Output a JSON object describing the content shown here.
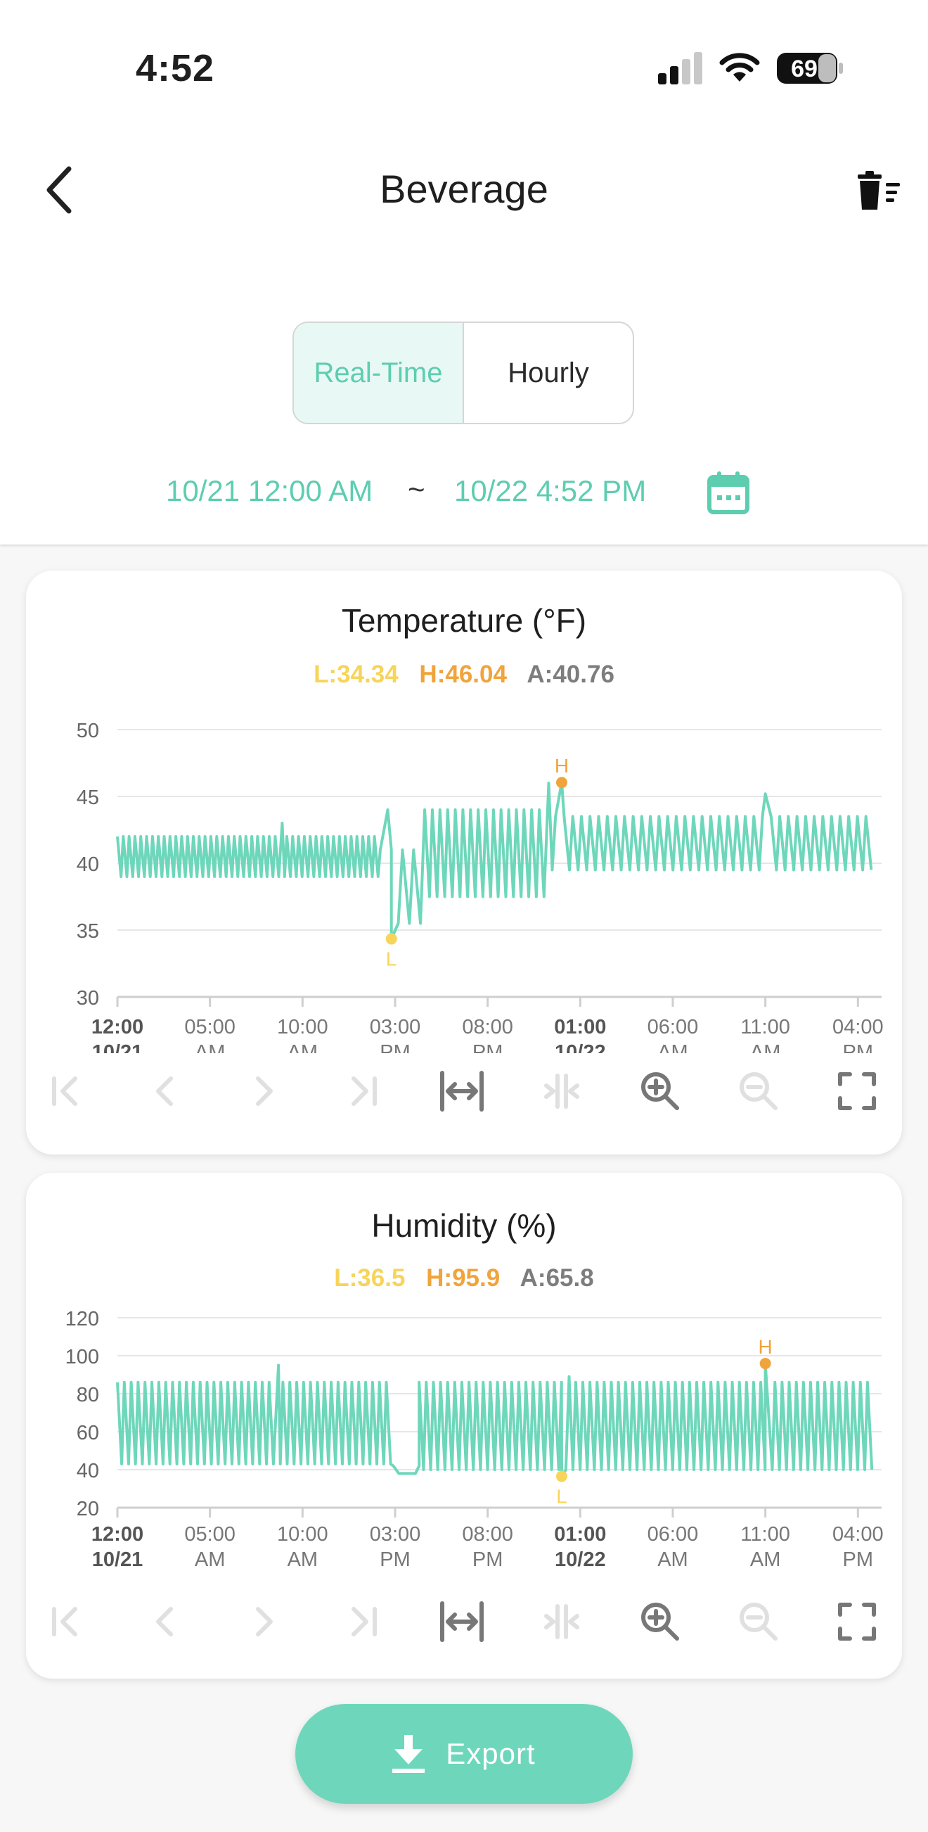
{
  "status_bar": {
    "time": "4:52",
    "battery": "69"
  },
  "header": {
    "title": "Beverage"
  },
  "mode_tabs": [
    {
      "label": "Real-Time",
      "active": true
    },
    {
      "label": "Hourly",
      "active": false
    }
  ],
  "date_range": {
    "start": "10/21 12:00 AM",
    "separator": "~",
    "end": "10/22 4:52 PM"
  },
  "colors": {
    "accent": "#5dcdb0",
    "line": "#6ed7bb",
    "low": "#f7d45a",
    "high": "#f0a43c",
    "avg": "#7d7d7d"
  },
  "toolbar_icons": [
    "first-page-icon",
    "prev-icon",
    "next-icon",
    "last-page-icon",
    "fit-width-icon",
    "compress-icon",
    "zoom-in-icon",
    "zoom-out-icon",
    "fullscreen-icon"
  ],
  "x_ticks": [
    {
      "top": "12:00",
      "bottom": "10/21",
      "bold": true
    },
    {
      "top": "05:00",
      "bottom": "AM",
      "bold": false
    },
    {
      "top": "10:00",
      "bottom": "AM",
      "bold": false
    },
    {
      "top": "03:00",
      "bottom": "PM",
      "bold": false
    },
    {
      "top": "08:00",
      "bottom": "PM",
      "bold": false
    },
    {
      "top": "01:00",
      "bottom": "10/22",
      "bold": true
    },
    {
      "top": "06:00",
      "bottom": "AM",
      "bold": false
    },
    {
      "top": "11:00",
      "bottom": "AM",
      "bold": false
    },
    {
      "top": "04:00",
      "bottom": "PM",
      "bold": false
    }
  ],
  "chart_data": [
    {
      "type": "line",
      "title": "Temperature (°F)",
      "stats": {
        "low": "L:34.34",
        "high": "H:46.04",
        "avg": "A:40.76"
      },
      "low_marker": "L",
      "high_marker": "H",
      "ylim": [
        30,
        50
      ],
      "yticks": [
        "30",
        "35",
        "40",
        "45",
        "50"
      ],
      "x_hours": [
        0,
        40.9
      ],
      "low_point": {
        "x": 14.8,
        "y": 34.34
      },
      "high_point": {
        "x": 24.0,
        "y": 46.04
      },
      "segments": [
        {
          "x0": 0,
          "x1": 14.2,
          "count": 45,
          "hi": 42,
          "lo": 39
        },
        {
          "x0": 14.2,
          "x1": 16.6,
          "count": 4,
          "hi": 41,
          "lo": 35.5
        },
        {
          "x0": 16.6,
          "x1": 23.2,
          "count": 16,
          "hi": 44,
          "lo": 37.5
        },
        {
          "x0": 23.2,
          "x1": 40.9,
          "count": 38,
          "hi": 43.5,
          "lo": 39.5
        }
      ],
      "spikes": [
        {
          "x": 8.9,
          "y": 43
        },
        {
          "x": 14.6,
          "y": 44
        },
        {
          "x": 23.3,
          "y": 46
        },
        {
          "x": 24.0,
          "y": 46.04
        },
        {
          "x": 35.0,
          "y": 45.2
        }
      ]
    },
    {
      "type": "line",
      "title": "Humidity (%)",
      "stats": {
        "low": "L:36.5",
        "high": "H:95.9",
        "avg": "A:65.8"
      },
      "low_marker": "L",
      "high_marker": "H",
      "ylim": [
        20,
        120
      ],
      "yticks": [
        "20",
        "40",
        "60",
        "80",
        "100",
        "120"
      ],
      "x_hours": [
        0,
        40.9
      ],
      "low_point": {
        "x": 24.0,
        "y": 36.5
      },
      "high_point": {
        "x": 35.0,
        "y": 95.9
      },
      "flat_section": {
        "x0": 14.9,
        "x1": 16.3,
        "y": 38
      },
      "segments": [
        {
          "x0": 0,
          "x1": 14.9,
          "count": 40,
          "hi": 86,
          "lo": 43
        },
        {
          "x0": 16.3,
          "x1": 40.9,
          "count": 64,
          "hi": 86,
          "lo": 40
        }
      ],
      "spikes": [
        {
          "x": 8.7,
          "y": 95
        },
        {
          "x": 24.4,
          "y": 89
        },
        {
          "x": 35.0,
          "y": 95.9
        }
      ]
    }
  ],
  "export": {
    "label": "Export"
  }
}
